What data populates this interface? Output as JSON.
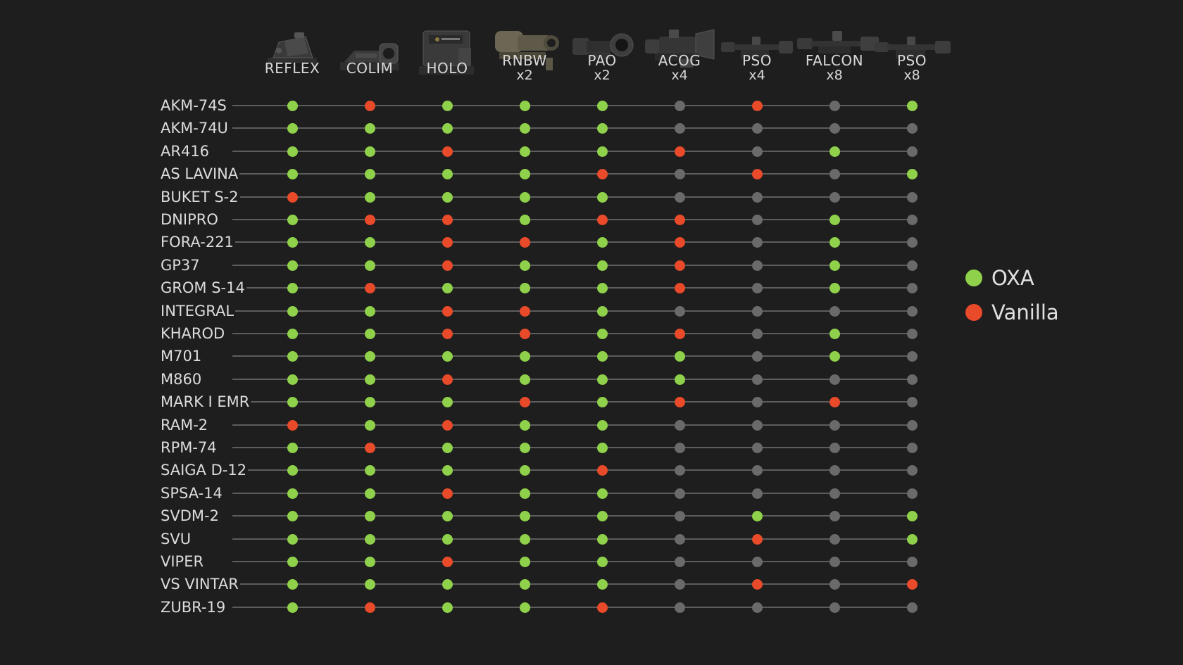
{
  "colors": {
    "oxa": "#8fd14a",
    "vanilla": "#e84a2a",
    "none": "#6a6a6a",
    "line": "#5d5d5d",
    "background": "#1e1e1e"
  },
  "scopes": [
    {
      "name": "REFLEX",
      "zoom": "",
      "icon": "reflex-sight-icon"
    },
    {
      "name": "COLIM",
      "zoom": "",
      "icon": "collimator-sight-icon"
    },
    {
      "name": "HOLO",
      "zoom": "",
      "icon": "holographic-sight-icon"
    },
    {
      "name": "RNBW",
      "zoom": "x2",
      "icon": "rnbw-scope-icon"
    },
    {
      "name": "PAO",
      "zoom": "x2",
      "icon": "pao-scope-icon"
    },
    {
      "name": "ACOG",
      "zoom": "x4",
      "icon": "acog-scope-icon"
    },
    {
      "name": "PSO",
      "zoom": "x4",
      "icon": "pso-x4-scope-icon"
    },
    {
      "name": "FALCON",
      "zoom": "x8",
      "icon": "falcon-scope-icon"
    },
    {
      "name": "PSO",
      "zoom": "x8",
      "icon": "pso-x8-scope-icon"
    }
  ],
  "weapons": [
    {
      "name": "AKM-74S",
      "values": [
        "oxa",
        "vanilla",
        "oxa",
        "oxa",
        "oxa",
        "none",
        "vanilla",
        "none",
        "oxa"
      ]
    },
    {
      "name": "AKM-74U",
      "values": [
        "oxa",
        "oxa",
        "oxa",
        "oxa",
        "oxa",
        "none",
        "none",
        "none",
        "none"
      ]
    },
    {
      "name": "AR416",
      "values": [
        "oxa",
        "oxa",
        "vanilla",
        "oxa",
        "oxa",
        "vanilla",
        "none",
        "oxa",
        "none"
      ]
    },
    {
      "name": "AS LAVINA",
      "values": [
        "oxa",
        "oxa",
        "oxa",
        "oxa",
        "vanilla",
        "none",
        "vanilla",
        "none",
        "oxa"
      ]
    },
    {
      "name": "BUKET S-2",
      "values": [
        "vanilla",
        "oxa",
        "oxa",
        "oxa",
        "oxa",
        "none",
        "none",
        "none",
        "none"
      ]
    },
    {
      "name": "DNIPRO",
      "values": [
        "oxa",
        "vanilla",
        "vanilla",
        "oxa",
        "vanilla",
        "vanilla",
        "none",
        "oxa",
        "none"
      ]
    },
    {
      "name": "FORA-221",
      "values": [
        "oxa",
        "oxa",
        "vanilla",
        "vanilla",
        "oxa",
        "vanilla",
        "none",
        "oxa",
        "none"
      ]
    },
    {
      "name": "GP37",
      "values": [
        "oxa",
        "oxa",
        "vanilla",
        "oxa",
        "oxa",
        "vanilla",
        "none",
        "oxa",
        "none"
      ]
    },
    {
      "name": "GROM S-14",
      "values": [
        "oxa",
        "vanilla",
        "oxa",
        "oxa",
        "oxa",
        "vanilla",
        "none",
        "oxa",
        "none"
      ]
    },
    {
      "name": "INTEGRAL",
      "values": [
        "oxa",
        "oxa",
        "vanilla",
        "vanilla",
        "oxa",
        "none",
        "none",
        "none",
        "none"
      ]
    },
    {
      "name": "KHAROD",
      "values": [
        "oxa",
        "oxa",
        "vanilla",
        "vanilla",
        "oxa",
        "vanilla",
        "none",
        "oxa",
        "none"
      ]
    },
    {
      "name": "M701",
      "values": [
        "oxa",
        "oxa",
        "oxa",
        "oxa",
        "oxa",
        "oxa",
        "none",
        "oxa",
        "none"
      ]
    },
    {
      "name": "M860",
      "values": [
        "oxa",
        "oxa",
        "vanilla",
        "oxa",
        "oxa",
        "oxa",
        "none",
        "none",
        "none"
      ]
    },
    {
      "name": "MARK I EMR",
      "values": [
        "oxa",
        "oxa",
        "oxa",
        "vanilla",
        "oxa",
        "vanilla",
        "none",
        "vanilla",
        "none"
      ]
    },
    {
      "name": "RAM-2",
      "values": [
        "vanilla",
        "oxa",
        "vanilla",
        "oxa",
        "oxa",
        "none",
        "none",
        "none",
        "none"
      ]
    },
    {
      "name": "RPM-74",
      "values": [
        "oxa",
        "vanilla",
        "oxa",
        "oxa",
        "oxa",
        "none",
        "none",
        "none",
        "none"
      ]
    },
    {
      "name": "SAIGA D-12",
      "values": [
        "oxa",
        "oxa",
        "oxa",
        "oxa",
        "vanilla",
        "none",
        "none",
        "none",
        "none"
      ]
    },
    {
      "name": "SPSA-14",
      "values": [
        "oxa",
        "oxa",
        "vanilla",
        "oxa",
        "oxa",
        "none",
        "none",
        "none",
        "none"
      ]
    },
    {
      "name": "SVDM-2",
      "values": [
        "oxa",
        "oxa",
        "oxa",
        "oxa",
        "oxa",
        "none",
        "oxa",
        "none",
        "oxa"
      ]
    },
    {
      "name": "SVU",
      "values": [
        "oxa",
        "oxa",
        "oxa",
        "oxa",
        "oxa",
        "none",
        "vanilla",
        "none",
        "oxa"
      ]
    },
    {
      "name": "VIPER",
      "values": [
        "oxa",
        "oxa",
        "vanilla",
        "oxa",
        "oxa",
        "none",
        "none",
        "none",
        "none"
      ]
    },
    {
      "name": "VS VINTAR",
      "values": [
        "oxa",
        "oxa",
        "oxa",
        "oxa",
        "oxa",
        "none",
        "vanilla",
        "none",
        "vanilla"
      ]
    },
    {
      "name": "ZUBR-19",
      "values": [
        "oxa",
        "vanilla",
        "oxa",
        "oxa",
        "vanilla",
        "none",
        "none",
        "none",
        "none"
      ]
    }
  ],
  "legend": [
    {
      "label": "OXA",
      "color": "#8fd14a"
    },
    {
      "label": "Vanilla",
      "color": "#e84a2a"
    }
  ]
}
